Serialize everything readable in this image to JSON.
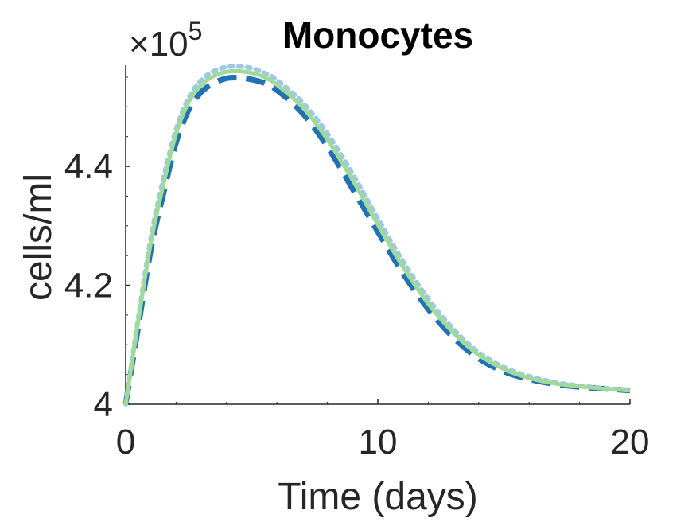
{
  "chart_data": {
    "type": "line",
    "title": "Monocytes",
    "xlabel": "Time (days)",
    "ylabel": "cells/ml",
    "exponent": {
      "base": "×10",
      "power": "5"
    },
    "xlim": [
      0,
      20
    ],
    "ylim": [
      4.0,
      4.57
    ],
    "xticks": [
      0,
      10,
      20
    ],
    "xtick_labels": [
      "0",
      "10",
      "20"
    ],
    "yticks": [
      4.0,
      4.2,
      4.4
    ],
    "ytick_labels": [
      "4",
      "4.2",
      "4.4"
    ],
    "grid": false,
    "colors": {
      "axis": "#262626",
      "dashed": "#2171b5",
      "dotted": "#9ecae1",
      "solid": "#a1d99b"
    },
    "series": [
      {
        "name": "dashed",
        "style": "dashed",
        "x": [
          0,
          0.5,
          1,
          1.5,
          2,
          2.5,
          3,
          3.5,
          4,
          4.5,
          5,
          5.5,
          6,
          7,
          8,
          9,
          10,
          11,
          12,
          13,
          14,
          15,
          16,
          17,
          18,
          19,
          20
        ],
        "y": [
          4.0,
          4.13,
          4.26,
          4.355,
          4.44,
          4.495,
          4.525,
          4.54,
          4.548,
          4.549,
          4.546,
          4.54,
          4.528,
          4.49,
          4.433,
          4.362,
          4.29,
          4.22,
          4.16,
          4.112,
          4.077,
          4.055,
          4.042,
          4.034,
          4.029,
          4.026,
          4.023
        ]
      },
      {
        "name": "dotted",
        "style": "dotted",
        "x": [
          0,
          0.5,
          1,
          1.5,
          2,
          2.5,
          3,
          3.5,
          4,
          4.5,
          5,
          5.5,
          6,
          7,
          8,
          9,
          10,
          11,
          12,
          13,
          14,
          15,
          16,
          17,
          18,
          19,
          20
        ],
        "y": [
          4.0,
          4.145,
          4.28,
          4.38,
          4.462,
          4.515,
          4.545,
          4.56,
          4.567,
          4.568,
          4.565,
          4.557,
          4.545,
          4.508,
          4.455,
          4.387,
          4.312,
          4.24,
          4.177,
          4.126,
          4.087,
          4.062,
          4.047,
          4.037,
          4.031,
          4.027,
          4.024
        ]
      },
      {
        "name": "solid",
        "style": "solid",
        "x": [
          0,
          0.5,
          1,
          1.5,
          2,
          2.5,
          3,
          3.5,
          4,
          4.5,
          5,
          5.5,
          6,
          7,
          8,
          9,
          10,
          11,
          12,
          13,
          14,
          15,
          16,
          17,
          18,
          19,
          20
        ],
        "y": [
          4.0,
          4.14,
          4.272,
          4.37,
          4.455,
          4.508,
          4.537,
          4.552,
          4.559,
          4.56,
          4.557,
          4.55,
          4.537,
          4.5,
          4.445,
          4.377,
          4.302,
          4.231,
          4.169,
          4.12,
          4.083,
          4.059,
          4.044,
          4.035,
          4.03,
          4.026,
          4.023
        ]
      }
    ]
  }
}
